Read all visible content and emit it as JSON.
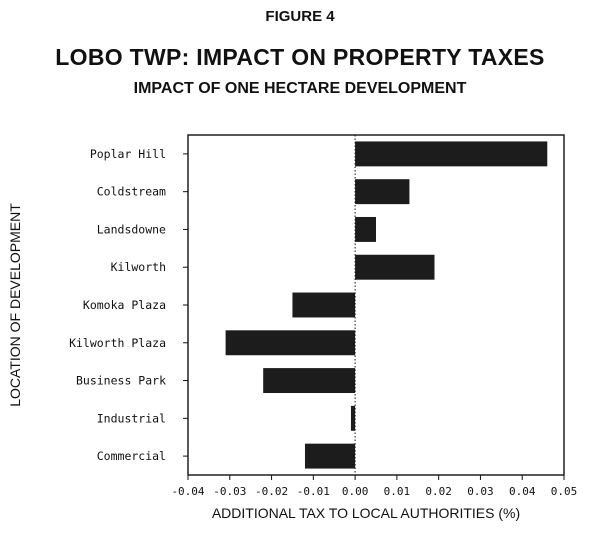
{
  "figure_label": "FIGURE 4",
  "chart_data": {
    "type": "bar",
    "orientation": "horizontal",
    "title": "LOBO TWP: IMPACT ON PROPERTY TAXES",
    "subtitle": "IMPACT OF ONE HECTARE DEVELOPMENT",
    "xlabel": "ADDITIONAL TAX TO LOCAL AUTHORITIES (%)",
    "ylabel": "LOCATION OF DEVELOPMENT",
    "xlim": [
      -0.04,
      0.05
    ],
    "xticks": [
      "-0.04",
      "-0.03",
      "-0.02",
      "-0.01",
      "0.00",
      "0.01",
      "0.02",
      "0.03",
      "0.04",
      "0.05"
    ],
    "categories": [
      "Poplar Hill",
      "Coldstream",
      "Landsdowne",
      "Kilworth",
      "Komoka Plaza",
      "Kilworth Plaza",
      "Business Park",
      "Industrial",
      "Commercial"
    ],
    "values": [
      0.046,
      0.013,
      0.005,
      0.019,
      -0.015,
      -0.031,
      -0.022,
      -0.001,
      -0.012
    ],
    "bar_color": "#1c1c1c",
    "zero_line": "dotted"
  }
}
